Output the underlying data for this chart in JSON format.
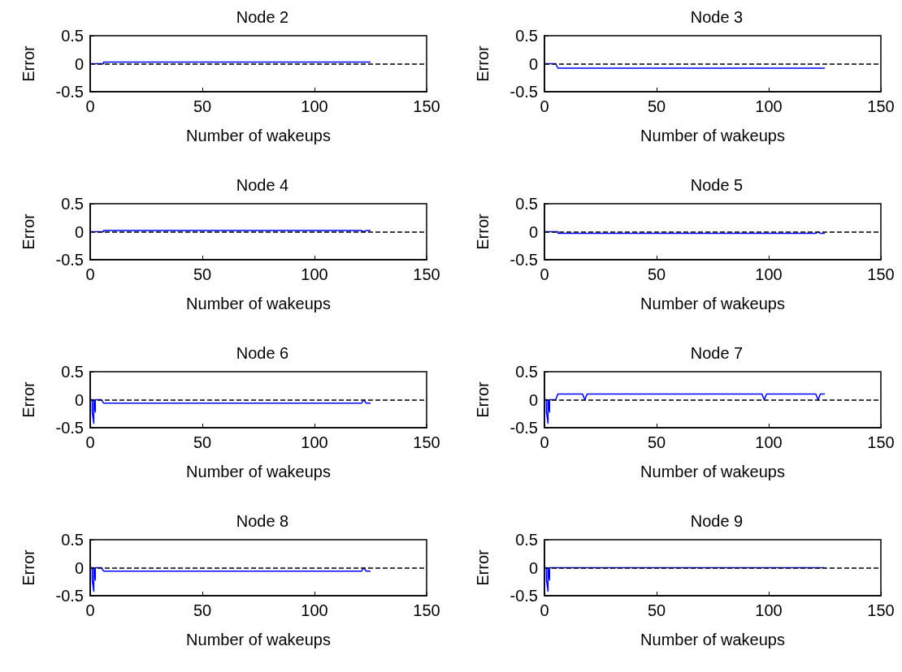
{
  "chart_data": [
    {
      "type": "line",
      "title": "Node 2",
      "xlabel": "Number of wakeups",
      "ylabel": "Error",
      "x": [
        0,
        6,
        6,
        125
      ],
      "series": [
        {
          "color": "#0000ff",
          "values": [
            0,
            0,
            0.03,
            0.03
          ]
        }
      ],
      "xlim": [
        0,
        150
      ],
      "xticks": [
        0,
        50,
        100,
        150
      ],
      "ylim": [
        -0.5,
        0.5
      ],
      "yticks": [
        -0.5,
        0,
        0.5
      ],
      "ref_lines": [
        {
          "axis": "y",
          "value": 0,
          "color": "#000000",
          "line_style": "dashed"
        }
      ]
    },
    {
      "type": "line",
      "title": "Node 3",
      "xlabel": "Number of wakeups",
      "ylabel": "Error",
      "x": [
        0,
        5,
        6,
        125
      ],
      "series": [
        {
          "color": "#0000ff",
          "values": [
            0,
            0,
            -0.08,
            -0.08
          ]
        }
      ],
      "xlim": [
        0,
        150
      ],
      "xticks": [
        0,
        50,
        100,
        150
      ],
      "ylim": [
        -0.5,
        0.5
      ],
      "yticks": [
        -0.5,
        0,
        0.5
      ],
      "ref_lines": [
        {
          "axis": "y",
          "value": 0,
          "color": "#000000",
          "line_style": "dashed"
        }
      ]
    },
    {
      "type": "line",
      "title": "Node 4",
      "xlabel": "Number of wakeups",
      "ylabel": "Error",
      "x": [
        0,
        6,
        6,
        121,
        122,
        123,
        125
      ],
      "series": [
        {
          "color": "#0000ff",
          "values": [
            0,
            0,
            0.02,
            0.02,
            0,
            0.02,
            0.02
          ]
        }
      ],
      "xlim": [
        0,
        150
      ],
      "xticks": [
        0,
        50,
        100,
        150
      ],
      "ylim": [
        -0.5,
        0.5
      ],
      "yticks": [
        -0.5,
        0,
        0.5
      ],
      "ref_lines": [
        {
          "axis": "y",
          "value": 0,
          "color": "#000000",
          "line_style": "dashed"
        }
      ]
    },
    {
      "type": "line",
      "title": "Node 5",
      "xlabel": "Number of wakeups",
      "ylabel": "Error",
      "x": [
        0,
        6,
        6,
        121,
        122,
        123,
        125
      ],
      "series": [
        {
          "color": "#0000ff",
          "values": [
            0,
            0,
            -0.03,
            -0.03,
            0,
            -0.03,
            -0.03
          ]
        }
      ],
      "xlim": [
        0,
        150
      ],
      "xticks": [
        0,
        50,
        100,
        150
      ],
      "ylim": [
        -0.5,
        0.5
      ],
      "yticks": [
        -0.5,
        0,
        0.5
      ],
      "ref_lines": [
        {
          "axis": "y",
          "value": 0,
          "color": "#000000",
          "line_style": "dashed"
        }
      ]
    },
    {
      "type": "line",
      "title": "Node 6",
      "xlabel": "Number of wakeups",
      "ylabel": "Error",
      "x": [
        0,
        0.9,
        0.9,
        1.6,
        1.6,
        2.3,
        2.3,
        5,
        6,
        121,
        122,
        123,
        125
      ],
      "series": [
        {
          "color": "#0000ff",
          "values": [
            0,
            0,
            -0.22,
            -0.42,
            0,
            -0.22,
            0,
            0,
            -0.06,
            -0.06,
            0,
            -0.06,
            -0.06
          ]
        }
      ],
      "xlim": [
        0,
        150
      ],
      "xticks": [
        0,
        50,
        100,
        150
      ],
      "ylim": [
        -0.5,
        0.5
      ],
      "yticks": [
        -0.5,
        0,
        0.5
      ],
      "ref_lines": [
        {
          "axis": "y",
          "value": 0,
          "color": "#000000",
          "line_style": "dashed"
        }
      ]
    },
    {
      "type": "line",
      "title": "Node 7",
      "xlabel": "Number of wakeups",
      "ylabel": "Error",
      "x": [
        0,
        0.9,
        0.9,
        1.6,
        1.6,
        2.3,
        2.3,
        5,
        6,
        17,
        18,
        19,
        97,
        98,
        99,
        121,
        122,
        123,
        125
      ],
      "series": [
        {
          "color": "#0000ff",
          "values": [
            0,
            0,
            -0.22,
            -0.42,
            0,
            -0.22,
            0,
            0,
            0.1,
            0.1,
            0,
            0.1,
            0.1,
            0,
            0.1,
            0.1,
            0,
            0.1,
            0.1
          ]
        }
      ],
      "xlim": [
        0,
        150
      ],
      "xticks": [
        0,
        50,
        100,
        150
      ],
      "ylim": [
        -0.5,
        0.5
      ],
      "yticks": [
        -0.5,
        0,
        0.5
      ],
      "ref_lines": [
        {
          "axis": "y",
          "value": 0,
          "color": "#000000",
          "line_style": "dashed"
        }
      ]
    },
    {
      "type": "line",
      "title": "Node 8",
      "xlabel": "Number of wakeups",
      "ylabel": "Error",
      "x": [
        0,
        0.9,
        0.9,
        1.6,
        1.6,
        2.3,
        2.3,
        5,
        6,
        121,
        122,
        123,
        125
      ],
      "series": [
        {
          "color": "#0000ff",
          "values": [
            0,
            0,
            -0.22,
            -0.42,
            0,
            -0.22,
            0,
            0,
            -0.06,
            -0.06,
            0,
            -0.06,
            -0.06
          ]
        }
      ],
      "xlim": [
        0,
        150
      ],
      "xticks": [
        0,
        50,
        100,
        150
      ],
      "ylim": [
        -0.5,
        0.5
      ],
      "yticks": [
        -0.5,
        0,
        0.5
      ],
      "ref_lines": [
        {
          "axis": "y",
          "value": 0,
          "color": "#000000",
          "line_style": "dashed"
        }
      ]
    },
    {
      "type": "line",
      "title": "Node 9",
      "xlabel": "Number of wakeups",
      "ylabel": "Error",
      "x": [
        0,
        0.9,
        0.9,
        1.6,
        1.6,
        2.3,
        2.3,
        125
      ],
      "series": [
        {
          "color": "#0000ff",
          "values": [
            0,
            0,
            -0.22,
            -0.42,
            0,
            -0.22,
            0,
            0
          ]
        }
      ],
      "xlim": [
        0,
        150
      ],
      "xticks": [
        0,
        50,
        100,
        150
      ],
      "ylim": [
        -0.5,
        0.5
      ],
      "yticks": [
        -0.5,
        0,
        0.5
      ],
      "ref_lines": [
        {
          "axis": "y",
          "value": 0,
          "color": "#000000",
          "line_style": "dashed"
        }
      ]
    }
  ]
}
